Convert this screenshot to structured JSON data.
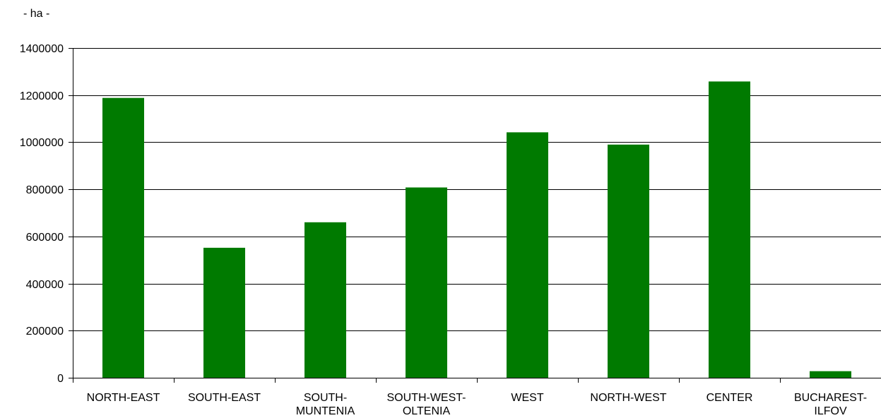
{
  "chart_data": {
    "type": "bar",
    "unit_label": "- ha -",
    "categories": [
      [
        "NORTH-EAST"
      ],
      [
        "SOUTH-EAST"
      ],
      [
        "SOUTH-",
        "MUNTENIA"
      ],
      [
        "SOUTH-WEST-",
        "OLTENIA"
      ],
      [
        "WEST"
      ],
      [
        "NORTH-WEST"
      ],
      [
        "CENTER"
      ],
      [
        "BUCHAREST-",
        "ILFOV"
      ]
    ],
    "values": [
      1188000,
      552000,
      660000,
      808000,
      1042000,
      990000,
      1258000,
      28000
    ],
    "yticks": [
      "0",
      "200000",
      "400000",
      "600000",
      "800000",
      "1000000",
      "1200000",
      "1400000"
    ],
    "ylim": [
      0,
      1400000
    ],
    "grid": true,
    "legend": "none",
    "bar_color": "#007A00",
    "axis_color": "#000000"
  }
}
